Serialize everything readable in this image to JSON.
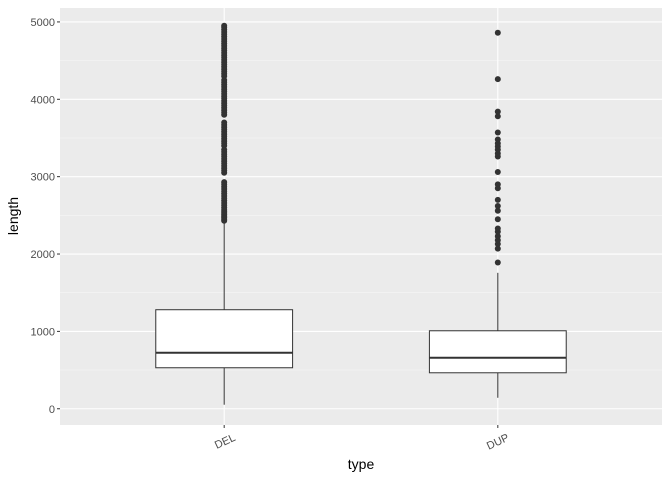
{
  "chart_data": {
    "type": "box",
    "xlabel": "type",
    "ylabel": "length",
    "categories": [
      "DEL",
      "DUP"
    ],
    "boxes": [
      {
        "whisker_low": 52,
        "q1": 530,
        "median": 724,
        "q3": 1280,
        "whisker_high": 2416,
        "outliers": [
          2430,
          2450,
          2470,
          2490,
          2510,
          2530,
          2550,
          2570,
          2600,
          2630,
          2660,
          2690,
          2720,
          2750,
          2780,
          2810,
          2840,
          2870,
          2900,
          2930,
          3050,
          3080,
          3110,
          3140,
          3170,
          3200,
          3230,
          3260,
          3290,
          3320,
          3350,
          3400,
          3430,
          3460,
          3490,
          3520,
          3550,
          3580,
          3610,
          3640,
          3670,
          3700,
          3800,
          3830,
          3860,
          3890,
          3920,
          3950,
          3980,
          4010,
          4040,
          4070,
          4100,
          4130,
          4160,
          4190,
          4220,
          4250,
          4300,
          4330,
          4360,
          4390,
          4420,
          4450,
          4480,
          4510,
          4540,
          4570,
          4600,
          4630,
          4660,
          4690,
          4720,
          4750,
          4780,
          4810,
          4840,
          4870,
          4900,
          4930,
          4950
        ]
      },
      {
        "whisker_low": 142,
        "q1": 465,
        "median": 659,
        "q3": 1008,
        "whisker_high": 1757,
        "outliers": [
          1890,
          2070,
          2130,
          2180,
          2230,
          2290,
          2330,
          2450,
          2560,
          2620,
          2700,
          2850,
          2900,
          3060,
          3260,
          3300,
          3350,
          3390,
          3430,
          3480,
          3570,
          3780,
          3840,
          4260,
          4860
        ]
      }
    ],
    "ylim": [
      -210,
      5180
    ],
    "yticks": [
      0,
      1000,
      2000,
      3000,
      4000,
      5000
    ],
    "y_minor_ticks": [
      500,
      1500,
      2500,
      3500,
      4500
    ],
    "grid": true,
    "box_fill": "#ffffff",
    "box_stroke": "#333333",
    "outlier_color": "#333333",
    "panel_background": "#ebebeb"
  }
}
